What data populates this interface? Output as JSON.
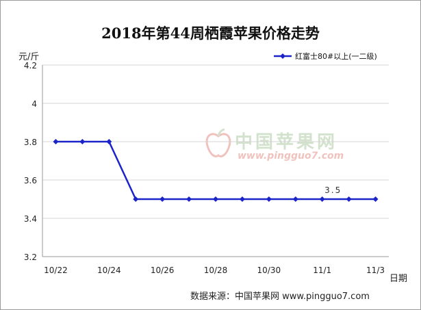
{
  "chart_data": {
    "type": "line",
    "title": "2018年第44周栖霞苹果价格走势",
    "ylabel": "元/斤",
    "xlabel": "日期",
    "categories": [
      "10/22",
      "10/23",
      "10/24",
      "10/25",
      "10/26",
      "10/27",
      "10/28",
      "10/29",
      "10/30",
      "10/31",
      "11/1",
      "11/2",
      "11/3"
    ],
    "x_tick_labels": [
      "10/22",
      "10/24",
      "10/26",
      "10/28",
      "10/30",
      "11/1",
      "11/3"
    ],
    "y_tick_labels": [
      "3.2",
      "3.4",
      "3.6",
      "3.8",
      "4",
      "4.2"
    ],
    "ylim": [
      3.2,
      4.2
    ],
    "series": [
      {
        "name": "红富士80#以上(一二级)",
        "values": [
          3.8,
          3.8,
          3.8,
          3.5,
          3.5,
          3.5,
          3.5,
          3.5,
          3.5,
          3.5,
          3.5,
          3.5,
          3.5
        ],
        "color": "#1a24c8"
      }
    ],
    "annotations": [
      {
        "text": "3.5",
        "category": "11/1",
        "value": 3.5
      }
    ],
    "grid": "horizontal",
    "legend_position": "top-right"
  },
  "source": "数据来源：中国苹果网 www.pingguo7.com",
  "watermark": {
    "text": "中国苹果网",
    "url": "www.pingguo7.com"
  }
}
